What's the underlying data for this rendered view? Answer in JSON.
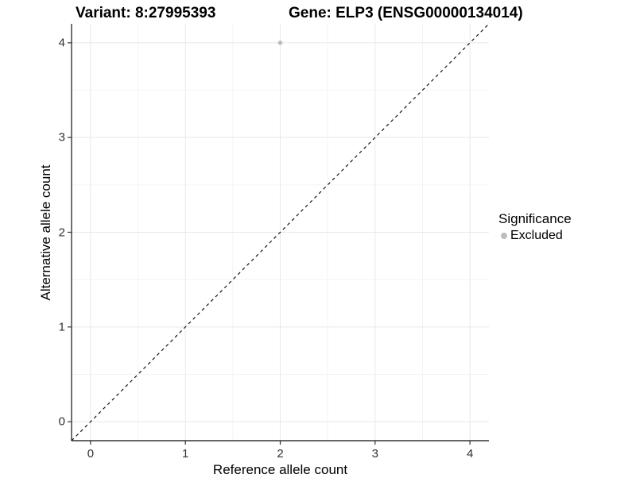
{
  "title": {
    "left": "Variant: 8:27995393",
    "right": "Gene: ELP3 (ENSG00000134014)"
  },
  "chart_data": {
    "type": "scatter",
    "xlabel": "Reference allele count",
    "ylabel": "Alternative allele count",
    "xticks": [
      0,
      1,
      2,
      3,
      4
    ],
    "yticks": [
      0,
      1,
      2,
      3,
      4
    ],
    "minor_ticks": [
      0.5,
      1.5,
      2.5,
      3.5
    ],
    "xlim": [
      -0.2,
      4.2
    ],
    "ylim": [
      -0.2,
      4.2
    ],
    "grid": true,
    "points": [
      {
        "x": 2,
        "y": 4,
        "series": "Excluded"
      }
    ],
    "reference_line": {
      "kind": "identity",
      "from": -0.2,
      "to": 4.2,
      "style": "dashed"
    },
    "legend": {
      "title": "Significance",
      "position": "right",
      "entries": [
        {
          "label": "Excluded",
          "color": "#bdbdbd"
        }
      ]
    }
  },
  "colors": {
    "excluded_point": "#bdbdbd",
    "grid_major": "#e8e8e8",
    "grid_minor": "#f3f3f3",
    "axis_line": "#333333",
    "dashed_line": "#000000",
    "tick_text": "#303030"
  }
}
